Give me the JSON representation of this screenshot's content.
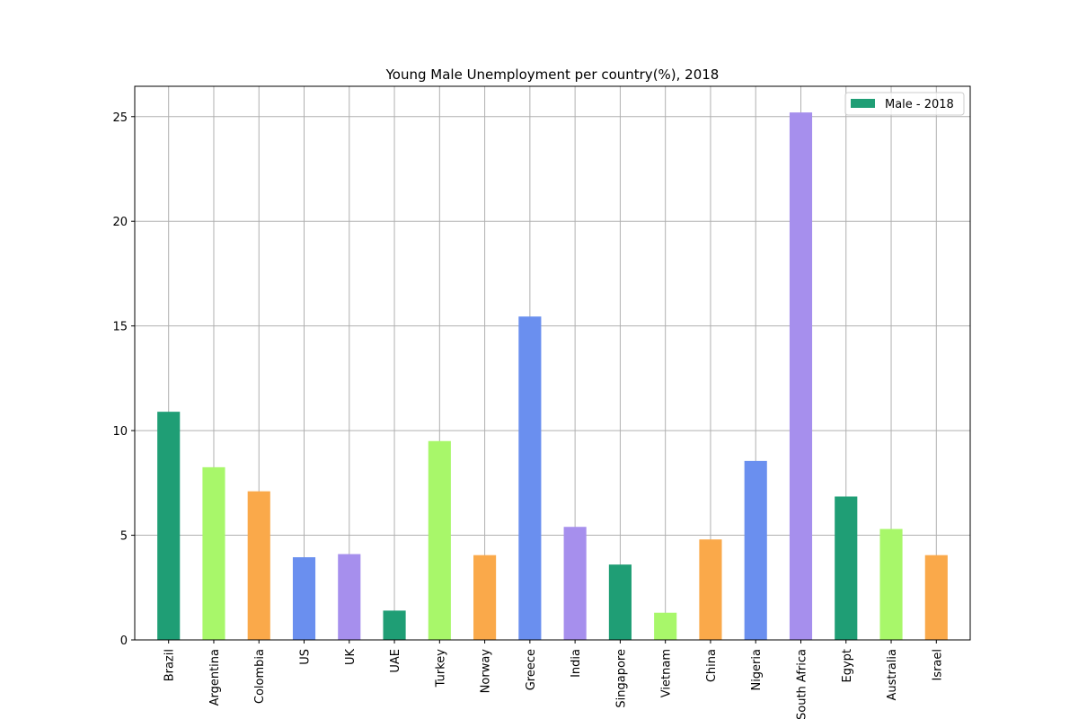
{
  "chart_data": {
    "type": "bar",
    "title": "Young Male Unemployment per country(%), 2018",
    "xlabel": "",
    "ylabel": "",
    "categories": [
      "Brazil",
      "Argentina",
      "Colombia",
      "US",
      "UK",
      "UAE",
      "Turkey",
      "Norway",
      "Greece",
      "India",
      "Singapore",
      "Vietnam",
      "China",
      "Nigeria",
      "South Africa",
      "Egypt",
      "Australia",
      "Israel"
    ],
    "series": [
      {
        "name": "Male - 2018",
        "values": [
          10.9,
          8.25,
          7.1,
          3.95,
          4.1,
          1.4,
          9.5,
          4.05,
          15.45,
          5.4,
          3.6,
          1.3,
          4.8,
          8.55,
          25.2,
          6.85,
          5.3,
          4.05
        ]
      }
    ],
    "bar_colors": [
      "#1f9e75",
      "#a8f76a",
      "#faa94a",
      "#6a8fef",
      "#a68fed",
      "#1f9e75",
      "#a8f76a",
      "#faa94a",
      "#6a8fef",
      "#a68fed",
      "#1f9e75",
      "#a8f76a",
      "#faa94a",
      "#6a8fef",
      "#a68fed",
      "#1f9e75",
      "#a8f76a",
      "#faa94a"
    ],
    "legend_color": "#1f9e75",
    "ylim": [
      0,
      26.45
    ],
    "yticks": [
      0,
      5,
      10,
      15,
      20,
      25
    ],
    "grid": true,
    "legend_position": "top-right"
  }
}
